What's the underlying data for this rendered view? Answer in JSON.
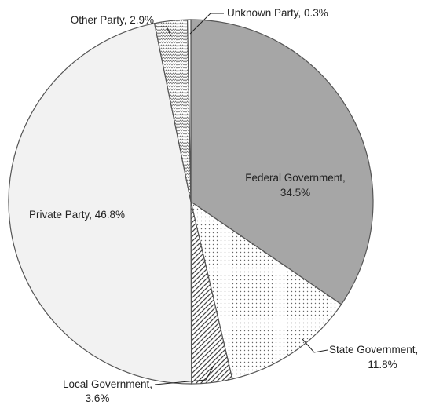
{
  "chart_data": {
    "type": "pie",
    "title": "",
    "start_angle_deg": 0,
    "direction": "clockwise",
    "slices": [
      {
        "label": "Federal Government,",
        "pct_text": "34.5%",
        "value": 34.5,
        "fill": "#a6a6a6",
        "pattern": "solid"
      },
      {
        "label": "State Government,",
        "pct_text": "11.8%",
        "value": 11.8,
        "fill": "#ffffff",
        "pattern": "dots"
      },
      {
        "label": "Local Government,",
        "pct_text": "3.6%",
        "value": 3.6,
        "fill": "#ffffff",
        "pattern": "diagonal-hatch"
      },
      {
        "label": "Private Party, 46.8%",
        "pct_text": "",
        "value": 46.8,
        "fill": "#f2f2f2",
        "pattern": "solid"
      },
      {
        "label": "Other Party, 2.9%",
        "pct_text": "",
        "value": 2.9,
        "fill": "#ffffff",
        "pattern": "zigzag"
      },
      {
        "label": "Unknown Party, 0.3%",
        "pct_text": "",
        "value": 0.3,
        "fill": "#ffffff",
        "pattern": "solid"
      }
    ]
  }
}
